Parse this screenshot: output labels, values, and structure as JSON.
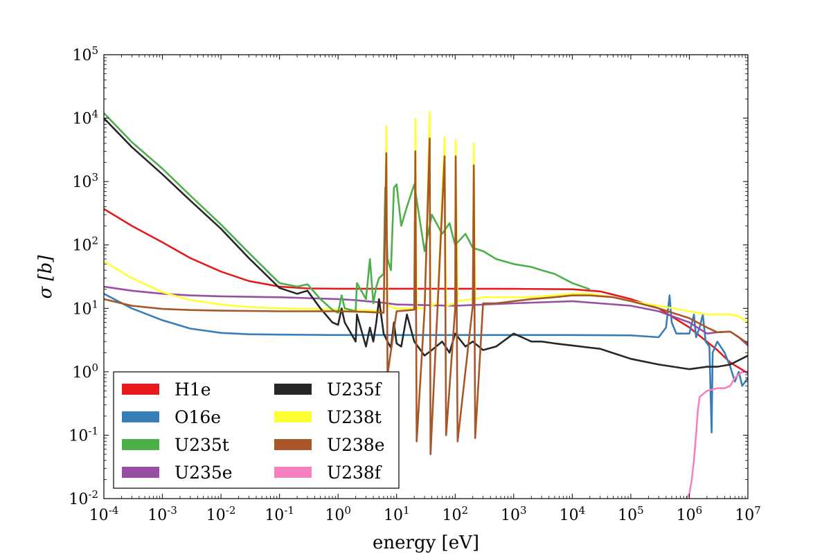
{
  "chart_data": {
    "type": "line",
    "xlabel": "energy [eV]",
    "ylabel": "σ [b]",
    "xscale": "log",
    "yscale": "log",
    "xlim": [
      0.0001,
      10000000
    ],
    "ylim": [
      0.01,
      100000
    ],
    "x_ticks": [
      {
        "value": 0.0001,
        "base": "10",
        "exp": "-4"
      },
      {
        "value": 0.001,
        "base": "10",
        "exp": "-3"
      },
      {
        "value": 0.01,
        "base": "10",
        "exp": "-2"
      },
      {
        "value": 0.1,
        "base": "10",
        "exp": "-1"
      },
      {
        "value": 1,
        "base": "10",
        "exp": "0"
      },
      {
        "value": 10,
        "base": "10",
        "exp": "1"
      },
      {
        "value": 100,
        "base": "10",
        "exp": "2"
      },
      {
        "value": 1000,
        "base": "10",
        "exp": "3"
      },
      {
        "value": 10000,
        "base": "10",
        "exp": "4"
      },
      {
        "value": 100000,
        "base": "10",
        "exp": "5"
      },
      {
        "value": 1000000,
        "base": "10",
        "exp": "6"
      },
      {
        "value": 10000000,
        "base": "10",
        "exp": "7"
      }
    ],
    "y_ticks": [
      {
        "value": 0.01,
        "base": "10",
        "exp": "-2"
      },
      {
        "value": 0.1,
        "base": "10",
        "exp": "-1"
      },
      {
        "value": 1,
        "base": "10",
        "exp": "0"
      },
      {
        "value": 10,
        "base": "10",
        "exp": "1"
      },
      {
        "value": 100,
        "base": "10",
        "exp": "2"
      },
      {
        "value": 1000,
        "base": "10",
        "exp": "3"
      },
      {
        "value": 10000,
        "base": "10",
        "exp": "4"
      },
      {
        "value": 100000,
        "base": "10",
        "exp": "5"
      }
    ],
    "grid": false,
    "legend": {
      "position": "lower-left",
      "columns": 2
    },
    "series": [
      {
        "name": "H1e",
        "color": "#e41a1c",
        "x": [
          0.0001,
          0.0003,
          0.001,
          0.003,
          0.01,
          0.03,
          0.1,
          0.3,
          1,
          10,
          100,
          1000,
          10000,
          30000,
          100000,
          300000,
          1000000,
          3000000,
          5000000,
          10000000
        ],
        "y": [
          370,
          200,
          110,
          62,
          38,
          27,
          22,
          20.6,
          20.4,
          20.4,
          20.4,
          20.3,
          20,
          18.5,
          14,
          10,
          5,
          2.2,
          1.4,
          0.95
        ]
      },
      {
        "name": "O16e",
        "color": "#377eb8",
        "x": [
          0.0001,
          0.0003,
          0.001,
          0.003,
          0.01,
          0.03,
          0.1,
          1,
          100,
          10000,
          100000,
          300000,
          400000,
          460000,
          500000,
          600000,
          1000000,
          1200000,
          1300000,
          1500000,
          1700000,
          1900000,
          2200000,
          2400000,
          2500000,
          3000000,
          4000000,
          5000000,
          6000000,
          7000000,
          8000000,
          10000000
        ],
        "y": [
          17,
          10,
          6.5,
          4.8,
          4.1,
          3.9,
          3.85,
          3.8,
          3.8,
          3.8,
          3.75,
          3.5,
          5,
          16,
          6,
          4,
          4,
          8,
          3.5,
          5,
          8,
          3,
          2.5,
          0.11,
          2,
          3,
          2,
          1.2,
          0.7,
          1,
          0.6,
          0.8
        ]
      },
      {
        "name": "U235t",
        "color": "#4daf4a",
        "x": [
          0.0001,
          0.0003,
          0.001,
          0.003,
          0.01,
          0.03,
          0.1,
          0.2,
          0.3,
          0.5,
          0.8,
          1,
          1.15,
          1.3,
          2,
          2.1,
          3,
          3.5,
          4,
          4.5,
          5,
          6,
          6.4,
          7,
          8,
          9,
          10,
          12,
          15,
          20,
          30,
          40,
          60,
          80,
          100,
          150,
          200,
          300,
          500,
          1000,
          2000,
          3000,
          5000,
          10000,
          20000
        ],
        "y": [
          12000,
          4200,
          1600,
          600,
          210,
          75,
          25,
          22,
          24,
          14,
          9.5,
          8.5,
          16,
          10,
          9,
          25,
          14,
          60,
          12,
          22,
          30,
          35,
          800,
          60,
          40,
          800,
          900,
          200,
          400,
          900,
          80,
          300,
          150,
          220,
          100,
          150,
          90,
          80,
          60,
          50,
          45,
          40,
          35,
          25,
          20
        ]
      },
      {
        "name": "U235e",
        "color": "#984ea3",
        "x": [
          0.0001,
          0.0003,
          0.001,
          0.003,
          0.01,
          0.03,
          0.1,
          0.3,
          1,
          2,
          3,
          5,
          10,
          100,
          1000,
          10000,
          100000,
          300000,
          1000000,
          2000000,
          3000000,
          5000000,
          7000000,
          10000000
        ],
        "y": [
          22,
          19,
          17,
          16,
          15.5,
          15.2,
          15,
          14.5,
          14,
          13.5,
          13,
          12.5,
          11.5,
          11,
          12,
          13,
          11,
          9,
          6,
          4,
          4.2,
          4.3,
          3.5,
          2.6
        ]
      },
      {
        "name": "U235f",
        "color": "#262626",
        "x": [
          0.0001,
          0.0003,
          0.001,
          0.003,
          0.01,
          0.03,
          0.1,
          0.2,
          0.3,
          0.5,
          0.8,
          1,
          1.15,
          1.3,
          2,
          2.1,
          3,
          3.5,
          4,
          4.5,
          5,
          6,
          7,
          8,
          9,
          10,
          12,
          15,
          20,
          30,
          40,
          60,
          80,
          100,
          150,
          200,
          300,
          500,
          1000,
          2000,
          3000,
          5000,
          10000,
          20000,
          30000,
          100000,
          300000,
          1000000,
          2000000,
          3000000,
          5000000,
          10000000
        ],
        "y": [
          10000,
          3500,
          1300,
          500,
          180,
          62,
          21,
          17,
          19,
          10,
          6,
          5.5,
          10,
          6,
          3,
          8,
          2.5,
          5,
          3,
          6,
          14,
          4,
          3,
          2.4,
          6,
          2.8,
          2.5,
          8,
          3,
          1.8,
          2.2,
          3,
          2,
          4,
          2.5,
          3,
          2.2,
          2.5,
          4,
          3,
          3,
          2.8,
          2.6,
          2.4,
          2.3,
          1.6,
          1.3,
          1.1,
          1.2,
          1.2,
          1.3,
          1.8
        ]
      },
      {
        "name": "U238t",
        "color": "#ffff33",
        "x": [
          0.0001,
          0.0003,
          0.001,
          0.003,
          0.01,
          0.03,
          0.1,
          0.3,
          1,
          3,
          6,
          6.67,
          7,
          10,
          20,
          20.9,
          22,
          30,
          36.7,
          38,
          50,
          66,
          70,
          100,
          102,
          110,
          200,
          208,
          220,
          300,
          500,
          1000,
          2000,
          5000,
          10000,
          20000,
          50000,
          100000,
          300000,
          1000000,
          2000000,
          3000000,
          5000000,
          7000000,
          10000000
        ],
        "y": [
          55,
          30,
          18,
          13.5,
          11.5,
          10.5,
          10,
          9.8,
          9.5,
          9.3,
          9,
          7500,
          11,
          9.8,
          10,
          9800,
          10,
          10,
          12500,
          11,
          12,
          5000,
          11,
          12,
          4500,
          13,
          14,
          4000,
          14,
          15,
          15,
          15,
          15,
          16,
          17,
          17,
          15,
          13,
          11,
          9,
          8,
          8,
          8,
          7.5,
          6
        ]
      },
      {
        "name": "U238e",
        "color": "#a65628",
        "x": [
          0.0001,
          0.0003,
          0.001,
          0.003,
          0.01,
          0.03,
          0.1,
          0.3,
          1,
          3,
          6,
          6.67,
          7,
          10,
          20,
          20.9,
          22,
          30,
          36.7,
          38,
          50,
          66,
          70,
          100,
          102,
          110,
          200,
          208,
          220,
          300,
          500,
          1000,
          2000,
          5000,
          10000,
          20000,
          50000,
          100000,
          300000,
          1000000,
          2000000,
          3000000,
          5000000,
          7000000,
          10000000
        ],
        "y": [
          14,
          11,
          9.8,
          9.4,
          9.2,
          9.1,
          9,
          9,
          9,
          8.8,
          8.5,
          2800,
          0.9,
          9,
          9.5,
          3000,
          0.08,
          9.5,
          4800,
          0.05,
          10,
          2500,
          0.1,
          10,
          2500,
          0.08,
          11,
          1800,
          0.09,
          12,
          12,
          13,
          14,
          15,
          16,
          16,
          15,
          13,
          10,
          7,
          5,
          4.2,
          4.3,
          3.5,
          2.8
        ]
      },
      {
        "name": "U238f",
        "color": "#f781bf",
        "x": [
          900000,
          1000000,
          1100000,
          1200000,
          1300000,
          1400000,
          1500000,
          2000000,
          3000000,
          4000000,
          5000000,
          6000000,
          8000000,
          10000000
        ],
        "y": [
          0.01,
          0.012,
          0.02,
          0.04,
          0.1,
          0.25,
          0.4,
          0.5,
          0.55,
          0.55,
          0.6,
          0.8,
          1,
          1
        ]
      }
    ]
  }
}
